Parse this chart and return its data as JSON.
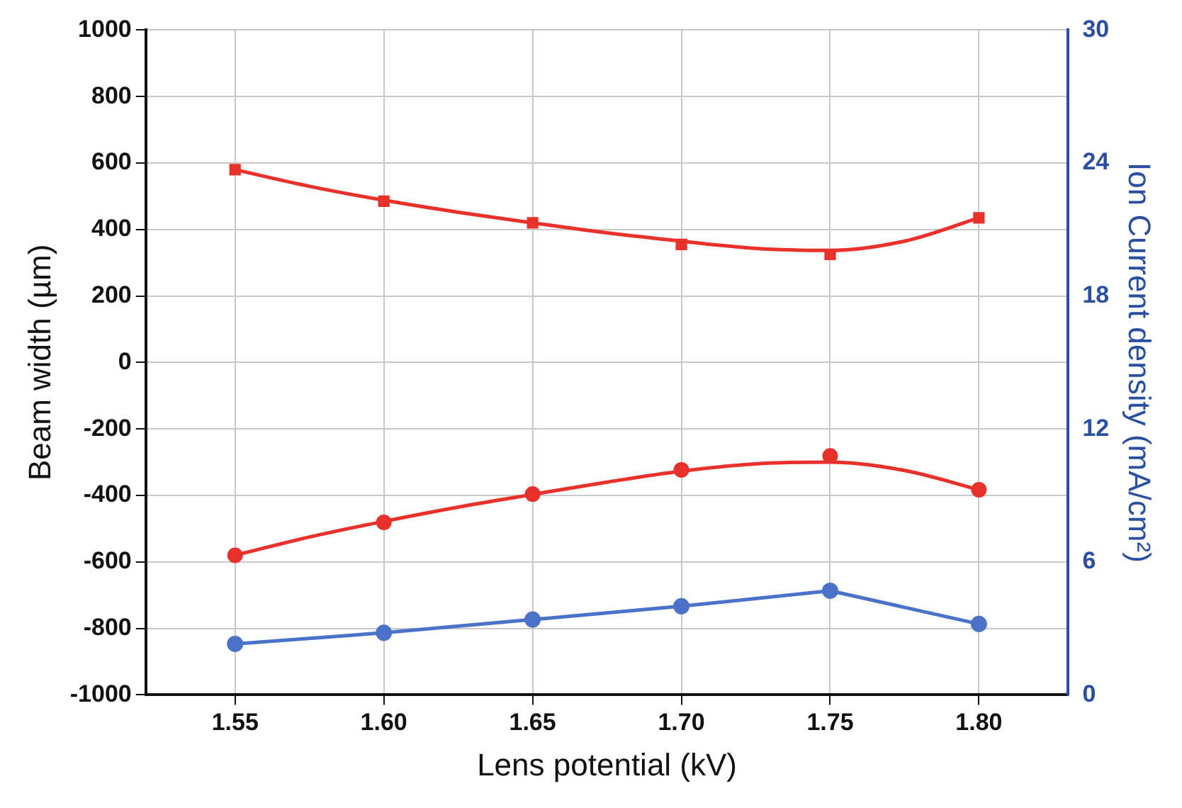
{
  "chart_data": {
    "type": "scatter",
    "xlabel": "Lens potential (kV)",
    "ylabel": "Beam width (µm)",
    "y2label": "Ion Current density (mA/cm²)",
    "x": [
      1.55,
      1.6,
      1.65,
      1.7,
      1.75,
      1.8
    ],
    "xlim": [
      1.52,
      1.83
    ],
    "xticks": [
      {
        "value": 1.55,
        "label": "1.55"
      },
      {
        "value": 1.6,
        "label": "1.60"
      },
      {
        "value": 1.65,
        "label": "1.65"
      },
      {
        "value": 1.7,
        "label": "1.70"
      },
      {
        "value": 1.75,
        "label": "1.75"
      },
      {
        "value": 1.8,
        "label": "1.80"
      }
    ],
    "ylim": [
      -1000,
      1000
    ],
    "yticks": [
      -1000,
      -800,
      -600,
      -400,
      -200,
      0,
      200,
      400,
      600,
      800,
      1000
    ],
    "y2lim": [
      0,
      30
    ],
    "y2ticks": [
      0,
      6,
      12,
      18,
      24,
      30
    ],
    "grid": true,
    "legend": false,
    "series": [
      {
        "type": "scatter",
        "marker": "square",
        "color": "#e8312a",
        "values": [
          580,
          485,
          420,
          355,
          325,
          435
        ]
      },
      {
        "type": "line",
        "marker": "none",
        "color": "#e8312a",
        "x": [
          1.55,
          1.575,
          1.6,
          1.625,
          1.65,
          1.675,
          1.7,
          1.725,
          1.75,
          1.775,
          1.8
        ],
        "values": [
          580,
          530,
          488,
          452,
          420,
          390,
          365,
          343,
          337,
          365,
          435
        ]
      },
      {
        "type": "scatter",
        "marker": "circle",
        "color": "#e8312a",
        "values": [
          -580,
          -481,
          -396,
          -323,
          -281,
          -383
        ]
      },
      {
        "type": "line",
        "marker": "none",
        "color": "#e8312a",
        "x": [
          1.55,
          1.575,
          1.6,
          1.625,
          1.65,
          1.675,
          1.7,
          1.725,
          1.75,
          1.775,
          1.8
        ],
        "values": [
          -580,
          -525,
          -478,
          -435,
          -397,
          -360,
          -327,
          -305,
          -300,
          -325,
          -383
        ]
      },
      {
        "type": "line",
        "marker": "circle",
        "color": "#4a72c8",
        "axis": "y2",
        "values": [
          2.3,
          2.8,
          3.4,
          4.0,
          4.7,
          3.2
        ]
      }
    ]
  }
}
